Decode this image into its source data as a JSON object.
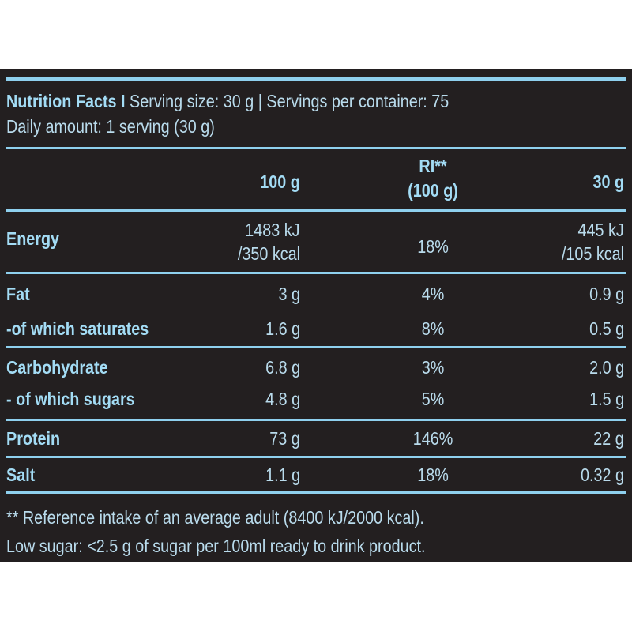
{
  "header": {
    "title_bold": "Nutrition Facts I",
    "title_rest": " Serving size: 30 g | Servings per container: 75",
    "daily_amount": "Daily amount: 1 serving (30 g)"
  },
  "columns": {
    "per100": "100 g",
    "ri_line1": "RI**",
    "ri_line2": "(100 g)",
    "per_serving": "30 g"
  },
  "rows": [
    {
      "label": "Energy",
      "per100_a": "1483 kJ",
      "per100_b": "/350 kcal",
      "ri": "18%",
      "serving_a": "445 kJ",
      "serving_b": "/105 kcal"
    },
    {
      "label": "Fat",
      "per100": "3 g",
      "ri": "4%",
      "serving": "0.9 g"
    },
    {
      "label": "-of which saturates",
      "per100": "1.6 g",
      "ri": "8%",
      "serving": "0.5 g"
    },
    {
      "label": "Carbohydrate",
      "per100": "6.8 g",
      "ri": "3%",
      "serving": "2.0 g"
    },
    {
      "label": "- of which sugars",
      "per100": "4.8 g",
      "ri": "5%",
      "serving": "1.5 g"
    },
    {
      "label": "Protein",
      "per100": "73 g",
      "ri": "146%",
      "serving": "22 g"
    },
    {
      "label": "Salt",
      "per100": "1.1 g",
      "ri": "18%",
      "serving": "0.32 g"
    }
  ],
  "footer": {
    "reference_note": "** Reference intake of an average adult (8400 kJ/2000 kcal).",
    "low_sugar_note": "Low sugar: <2.5 g of sugar per 100ml ready to drink product."
  },
  "colors": {
    "panel": "#231f20",
    "accent": "#8fd0ee",
    "text": "#b9dbec"
  }
}
